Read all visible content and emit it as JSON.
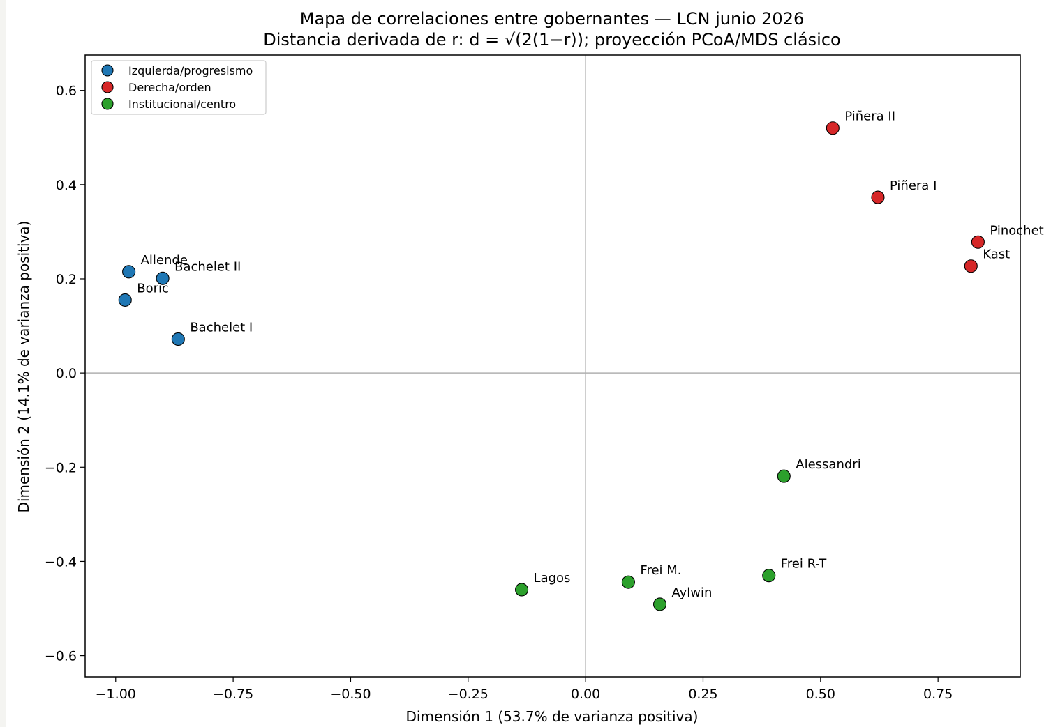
{
  "chart_data": {
    "type": "scatter",
    "title": "Mapa de correlaciones entre gobernantes — LCN junio 2026",
    "subtitle": "Distancia derivada de r: d = √(2(1−r)); proyección PCoA/MDS clásico",
    "xlabel": "Dimensión 1 (53.7% de varianza positiva)",
    "ylabel": "Dimensión 2 (14.1% de varianza positiva)",
    "xlim": [
      -1.065,
      0.925
    ],
    "ylim": [
      -0.645,
      0.675
    ],
    "xticks": [
      -1.0,
      -0.75,
      -0.5,
      -0.25,
      0.0,
      0.25,
      0.5,
      0.75
    ],
    "xtick_labels": [
      "−1.00",
      "−0.75",
      "−0.50",
      "−0.25",
      "0.00",
      "0.25",
      "0.50",
      "0.75"
    ],
    "yticks": [
      0.6,
      0.4,
      0.2,
      0.0,
      -0.2,
      -0.4,
      -0.6
    ],
    "ytick_labels": [
      "0.6",
      "0.4",
      "0.2",
      "0.0",
      "−0.2",
      "−0.4",
      "−0.6"
    ],
    "grid": false,
    "reference_lines": {
      "x": 0,
      "y": 0
    },
    "legend_position": "top-left",
    "series": [
      {
        "name": "Izquierda/progresismo",
        "color": "#1f77b4",
        "points": [
          {
            "label": "Allende",
            "x": -0.972,
            "y": 0.215
          },
          {
            "label": "Bachelet II",
            "x": -0.9,
            "y": 0.201
          },
          {
            "label": "Boric",
            "x": -0.98,
            "y": 0.155
          },
          {
            "label": "Bachelet I",
            "x": -0.867,
            "y": 0.072
          }
        ]
      },
      {
        "name": "Derecha/orden",
        "color": "#d62728",
        "points": [
          {
            "label": "Piñera II",
            "x": 0.526,
            "y": 0.52
          },
          {
            "label": "Piñera I",
            "x": 0.622,
            "y": 0.373
          },
          {
            "label": "Pinochet",
            "x": 0.835,
            "y": 0.278
          },
          {
            "label": "Kast",
            "x": 0.82,
            "y": 0.227
          }
        ]
      },
      {
        "name": "Institucional/centro",
        "color": "#2ca02c",
        "points": [
          {
            "label": "Alessandri",
            "x": 0.422,
            "y": -0.219
          },
          {
            "label": "Frei R-T",
            "x": 0.39,
            "y": -0.43
          },
          {
            "label": "Frei M.",
            "x": 0.091,
            "y": -0.444
          },
          {
            "label": "Aylwin",
            "x": 0.158,
            "y": -0.491
          },
          {
            "label": "Lagos",
            "x": -0.136,
            "y": -0.46
          }
        ]
      }
    ]
  }
}
